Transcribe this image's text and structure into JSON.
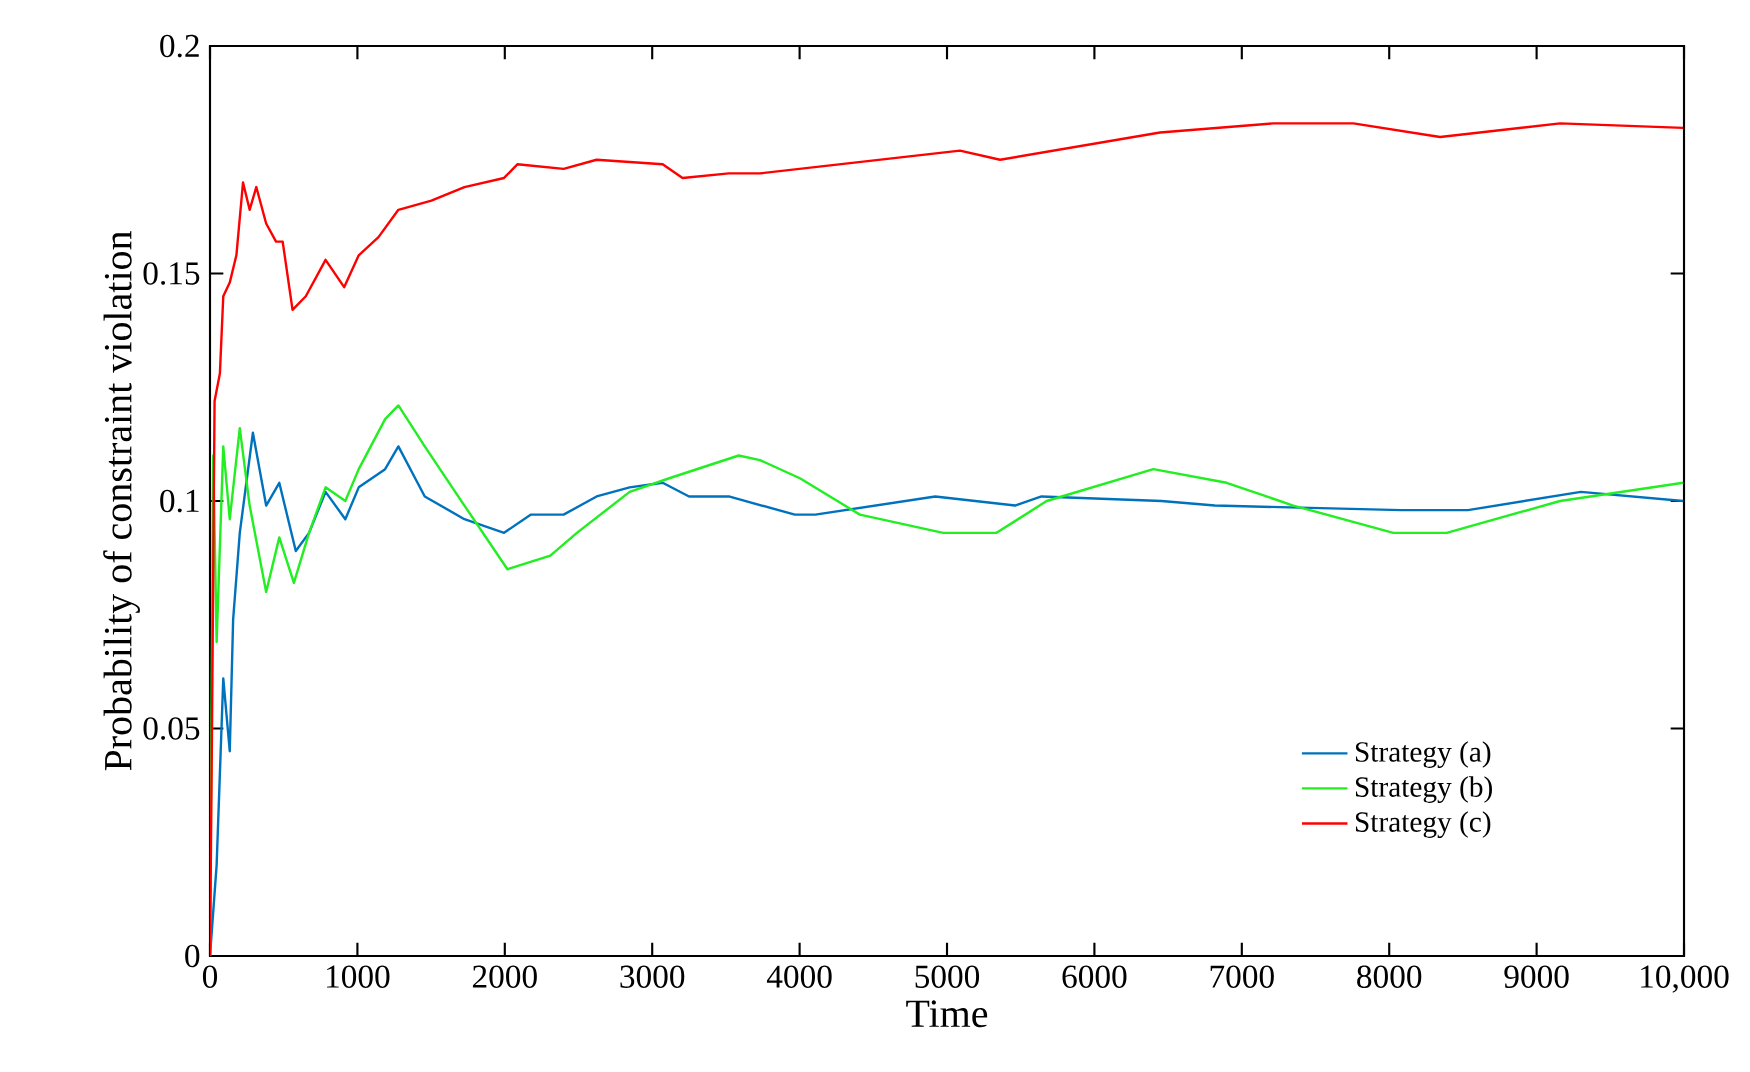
{
  "chart_data": {
    "type": "line",
    "xlabel": "Time",
    "ylabel": "Probability of constraint violation",
    "xlim": [
      0,
      10000
    ],
    "ylim": [
      0,
      0.2
    ],
    "xticks": [
      0,
      1000,
      2000,
      3000,
      4000,
      5000,
      6000,
      7000,
      8000,
      9000,
      {
        "value": 10000,
        "label": "10,000"
      }
    ],
    "yticks": [
      0,
      0.05,
      0.1,
      0.15,
      0.2
    ],
    "grid": false,
    "legend": "bottom right",
    "series": [
      {
        "name": "Strategy (a)",
        "color": "#0072bd",
        "x": [
          0,
          45,
          90,
          134,
          157,
          202,
          291,
          381,
          470,
          582,
          672,
          784,
          918,
          1009,
          1188,
          1278,
          1457,
          1726,
          1995,
          2175,
          2399,
          2623,
          2847,
          3071,
          3250,
          3520,
          3968,
          4107,
          4920,
          5462,
          5641,
          6455,
          6817,
          8082,
          8534,
          9300,
          9995
        ],
        "values": [
          0,
          0.02,
          0.061,
          0.045,
          0.074,
          0.093,
          0.115,
          0.099,
          0.104,
          0.089,
          0.093,
          0.102,
          0.096,
          0.103,
          0.107,
          0.112,
          0.101,
          0.096,
          0.093,
          0.097,
          0.097,
          0.101,
          0.103,
          0.104,
          0.101,
          0.101,
          0.097,
          0.097,
          0.101,
          0.099,
          0.101,
          0.1,
          0.099,
          0.098,
          0.098,
          0.102,
          0.1
        ]
      },
      {
        "name": "Strategy (b)",
        "color": "#22ee22",
        "x": [
          0,
          13,
          22,
          45,
          90,
          134,
          202,
          269,
          381,
          470,
          569,
          672,
          784,
          918,
          1009,
          1188,
          1278,
          1457,
          1726,
          2018,
          2309,
          2489,
          2847,
          3116,
          3587,
          3731,
          4002,
          4409,
          4974,
          5336,
          5676,
          6400,
          6897,
          7349,
          8028,
          8390,
          9159,
          9995
        ],
        "values": [
          0,
          null,
          0.11,
          0.069,
          0.112,
          0.096,
          0.116,
          0.099,
          0.08,
          0.092,
          0.082,
          0.093,
          0.103,
          0.1,
          0.107,
          0.118,
          0.121,
          0.112,
          0.099,
          0.085,
          0.088,
          0.093,
          0.102,
          0.105,
          0.11,
          0.109,
          0.105,
          0.097,
          0.093,
          0.093,
          0.1,
          0.107,
          0.104,
          0.099,
          0.093,
          0.093,
          0.1,
          0.104
        ]
      },
      {
        "name": "Strategy (c)",
        "color": "#ff0000",
        "x": [
          0,
          13,
          31,
          67,
          90,
          134,
          179,
          224,
          269,
          314,
          381,
          448,
          493,
          560,
          650,
          784,
          910,
          1009,
          1143,
          1278,
          1502,
          1726,
          1995,
          2085,
          2399,
          2623,
          3071,
          3206,
          3520,
          3731,
          5088,
          5360,
          6445,
          7214,
          7757,
          8345,
          9159,
          9995
        ],
        "values": [
          0,
          0.048,
          0.122,
          0.128,
          0.145,
          0.148,
          0.154,
          0.17,
          0.164,
          0.169,
          0.161,
          0.157,
          0.157,
          0.142,
          0.145,
          0.153,
          0.147,
          0.154,
          0.158,
          0.164,
          0.166,
          0.169,
          0.171,
          0.174,
          0.173,
          0.175,
          0.174,
          0.171,
          0.172,
          0.172,
          0.177,
          0.175,
          0.181,
          0.183,
          0.183,
          0.18,
          0.183,
          0.182
        ]
      }
    ]
  }
}
